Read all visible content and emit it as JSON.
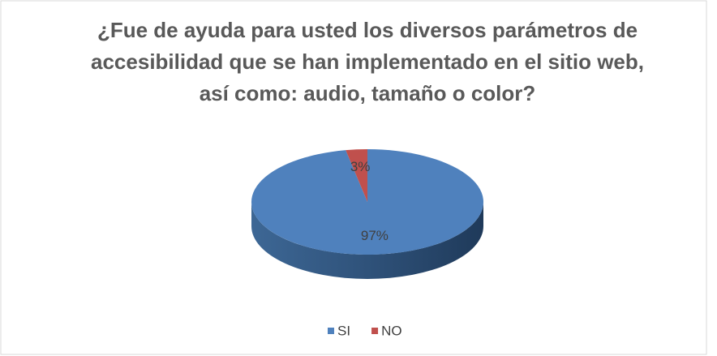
{
  "chart_data": {
    "type": "pie",
    "title": "¿Fue de ayuda para usted los diversos parámetros de accesibilidad que se han implementado en el sitio web, así como: audio, tamaño o color?",
    "categories": [
      "SI",
      "NO"
    ],
    "values": [
      97,
      3
    ],
    "value_labels": [
      "97%",
      "3%"
    ],
    "colors": [
      "#4f81bd",
      "#c0504d"
    ],
    "legend": "bottom"
  }
}
